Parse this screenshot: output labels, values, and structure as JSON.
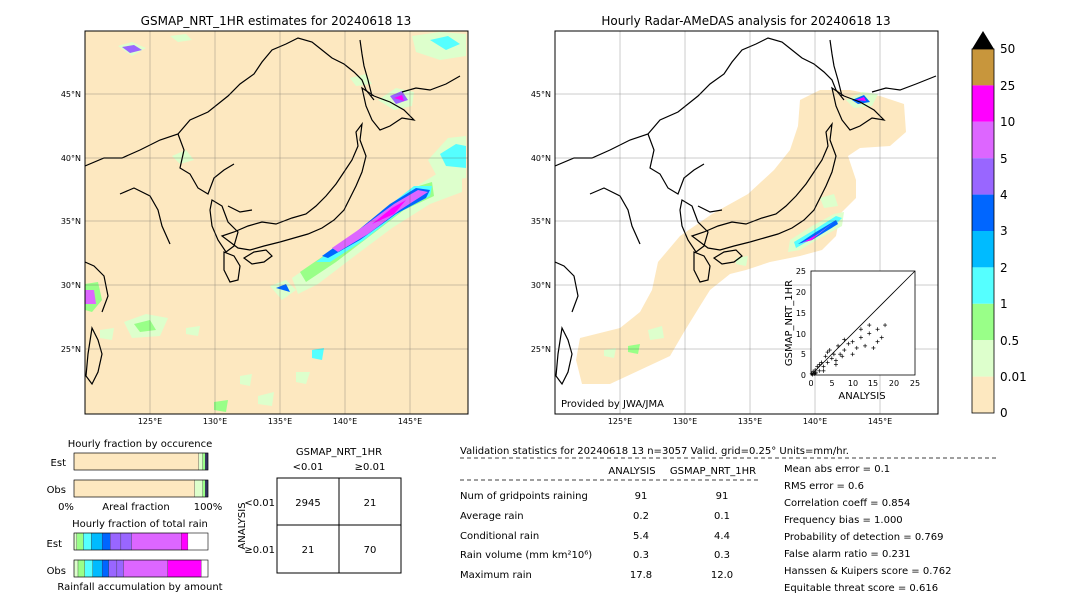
{
  "left_map": {
    "title": "GSMAP_NRT_1HR estimates for 20240618 13",
    "lon_ticks": [
      "125°E",
      "130°E",
      "135°E",
      "140°E",
      "145°E"
    ],
    "lat_ticks": [
      "45°N",
      "40°N",
      "35°N",
      "30°N",
      "25°N"
    ]
  },
  "right_map": {
    "title": "Hourly Radar-AMeDAS analysis for 20240618 13",
    "lon_ticks": [
      "125°E",
      "130°E",
      "135°E",
      "140°E",
      "145°E"
    ],
    "lat_ticks": [
      "45°N",
      "40°N",
      "35°N",
      "30°N",
      "25°N"
    ],
    "credit": "Provided by JWA/JMA"
  },
  "colorbar": {
    "labels": [
      "50",
      "25",
      "10",
      "5",
      "4",
      "3",
      "2",
      "1",
      "0.5",
      "0.01",
      "0"
    ],
    "colors": [
      "#c8963c",
      "#ff00ff",
      "#dd66ff",
      "#9966ff",
      "#0066ff",
      "#00bbff",
      "#55ffff",
      "#99ff88",
      "#ddffcc",
      "#fde8c0"
    ],
    "extend_color": "#000000"
  },
  "scatter": {
    "xlabel": "ANALYSIS",
    "ylabel": "GSMAP_NRT_1HR",
    "ticks": [
      "0",
      "5",
      "10",
      "15",
      "20",
      "25"
    ]
  },
  "occurrence": {
    "title": "Hourly fraction by occurence",
    "rows": [
      "Est",
      "Obs"
    ],
    "xlabels": [
      "0%",
      "Areal fraction",
      "100%"
    ]
  },
  "total_rain": {
    "title": "Hourly fraction of total rain",
    "rows": [
      "Est",
      "Obs"
    ],
    "xlabel": "Rainfall accumulation by amount"
  },
  "contingency": {
    "title": "GSMAP_NRT_1HR",
    "col_labels": [
      "<0.01",
      "≥0.01"
    ],
    "row_title": "ANALYSIS",
    "row_labels": [
      "<0.01",
      "≥0.01"
    ],
    "cells": [
      [
        "2945",
        "21"
      ],
      [
        "21",
        "70"
      ]
    ]
  },
  "validation": {
    "header": "Validation statistics for 20240618 13  n=3057 Valid. grid=0.25° Units=mm/hr.",
    "col_analysis": "ANALYSIS",
    "col_gsmap": "GSMAP_NRT_1HR",
    "rows": [
      {
        "label": "Num of gridpoints raining",
        "analysis": "91",
        "gsmap": "91"
      },
      {
        "label": "Average rain",
        "analysis": "0.2",
        "gsmap": "0.1"
      },
      {
        "label": "Conditional rain",
        "analysis": "5.4",
        "gsmap": "4.4"
      },
      {
        "label": "Rain volume (mm km²10⁶)",
        "analysis": "0.3",
        "gsmap": "0.3"
      },
      {
        "label": "Maximum rain",
        "analysis": "17.8",
        "gsmap": "12.0"
      }
    ],
    "scores": [
      "Mean abs error =    0.1",
      "RMS error =    0.6",
      "Correlation coeff =  0.854",
      "Frequency bias =  1.000",
      "Probability of detection =  0.769",
      "False alarm ratio =  0.231",
      "Hanssen & Kuipers score =  0.762",
      "Equitable threat score =  0.616"
    ]
  },
  "chart_data": [
    {
      "type": "scatter",
      "title": "",
      "xlabel": "ANALYSIS",
      "ylabel": "GSMAP_NRT_1HR",
      "xlim": [
        0,
        25
      ],
      "ylim": [
        0,
        25
      ],
      "points": [
        [
          0.2,
          0.3
        ],
        [
          0.4,
          0.1
        ],
        [
          0.5,
          0.8
        ],
        [
          0.8,
          0.3
        ],
        [
          1,
          1.2
        ],
        [
          1.2,
          0.5
        ],
        [
          1.5,
          2
        ],
        [
          2,
          1
        ],
        [
          2.5,
          3
        ],
        [
          3,
          2
        ],
        [
          3.5,
          4.5
        ],
        [
          4,
          3
        ],
        [
          4.5,
          6
        ],
        [
          5,
          4
        ],
        [
          5.5,
          5
        ],
        [
          6,
          3.5
        ],
        [
          6.5,
          7
        ],
        [
          7,
          5
        ],
        [
          7.5,
          4.5
        ],
        [
          8,
          6
        ],
        [
          9,
          7.5
        ],
        [
          10,
          8
        ],
        [
          11,
          6.5
        ],
        [
          12,
          9
        ],
        [
          13,
          7
        ],
        [
          14,
          10
        ],
        [
          15,
          6.5
        ],
        [
          16,
          8
        ],
        [
          17,
          9
        ],
        [
          17.8,
          12
        ],
        [
          1,
          0.5
        ],
        [
          2,
          2.5
        ],
        [
          3,
          1
        ],
        [
          4,
          5.5
        ],
        [
          6,
          2.5
        ],
        [
          8,
          8.5
        ],
        [
          10,
          5
        ],
        [
          12,
          11
        ],
        [
          14,
          12
        ],
        [
          16,
          11
        ]
      ]
    },
    {
      "type": "bar",
      "title": "Hourly fraction by occurence",
      "xlabel": "Areal fraction",
      "categories": [
        "Est",
        "Obs"
      ],
      "series": [
        {
          "values": [
            0.93,
            0.9
          ]
        },
        {
          "values": [
            0.03,
            0.06
          ]
        },
        {
          "values": [
            0.02,
            0.02
          ]
        },
        {
          "values": [
            0.02,
            0.02
          ]
        }
      ]
    },
    {
      "type": "bar",
      "title": "Hourly fraction of total rain",
      "xlabel": "Rainfall accumulation by amount",
      "categories": [
        "Est",
        "Obs"
      ],
      "series": [
        {
          "values": [
            0.02,
            0.03
          ]
        },
        {
          "values": [
            0.05,
            0.05
          ]
        },
        {
          "values": [
            0.06,
            0.06
          ]
        },
        {
          "values": [
            0.08,
            0.07
          ]
        },
        {
          "values": [
            0.06,
            0.05
          ]
        },
        {
          "values": [
            0.08,
            0.06
          ]
        },
        {
          "values": [
            0.08,
            0.05
          ]
        },
        {
          "values": [
            0.37,
            0.33
          ]
        },
        {
          "values": [
            0.05,
            0.25
          ]
        }
      ]
    }
  ]
}
